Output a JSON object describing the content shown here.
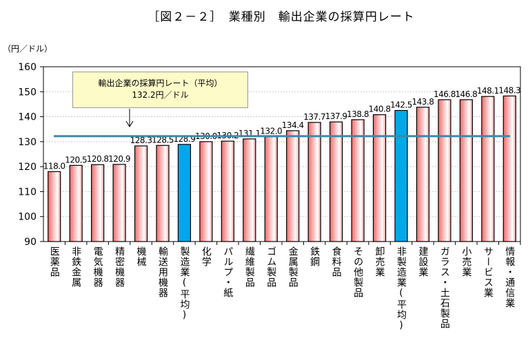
{
  "chart_data": {
    "type": "bar",
    "title": "［図２－２］　業種別　輸出企業の採算円レート",
    "ylabel": "（円／ドル）",
    "ylim": [
      90,
      160
    ],
    "yticks": [
      90,
      100,
      110,
      120,
      130,
      140,
      150,
      160
    ],
    "grid": true,
    "categories": [
      "医薬品",
      "非鉄金属",
      "電気機器",
      "精密機器",
      "機械",
      "輸送用機器",
      "製造業(平均)",
      "化学",
      "パルプ・紙",
      "繊維製品",
      "ゴム製品",
      "金属製品",
      "鉄鋼",
      "食料品",
      "その他製品",
      "卸売業",
      "非製造業(平均)",
      "建設業",
      "ガラス・土石製品",
      "小売業",
      "サービス業",
      "情報・通信業"
    ],
    "values": [
      118.0,
      120.5,
      120.8,
      120.9,
      128.3,
      128.5,
      128.9,
      130.0,
      130.2,
      131.1,
      132.0,
      134.4,
      137.7,
      137.9,
      138.8,
      140.8,
      142.5,
      143.8,
      146.8,
      146.8,
      148.1,
      148.3
    ],
    "highlighted": [
      "製造業(平均)",
      "非製造業(平均)"
    ],
    "reference_line": {
      "value": 132.2,
      "label_line1": "輸出企業の採算円レート（平均）",
      "label_line2": "132.2円／ドル",
      "color": "#3a8aa8"
    },
    "colors": {
      "bar": "#f07070",
      "highlight": "#00a8e8"
    }
  }
}
